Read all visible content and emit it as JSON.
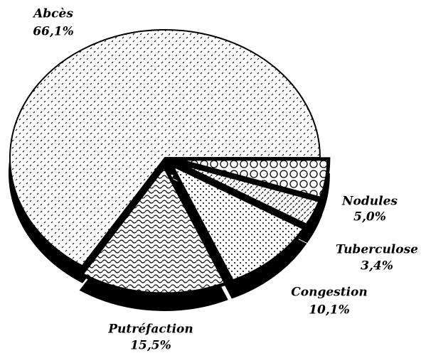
{
  "chart_data": {
    "type": "pie",
    "categories": [
      "Abcès",
      "Putréfaction",
      "Congestion",
      "Tuberculose",
      "Nodules"
    ],
    "values": [
      66.1,
      15.5,
      10.1,
      3.4,
      5.0
    ],
    "value_labels": [
      "66,1%",
      "15,5%",
      "10,1%",
      "3,4%",
      "5,0%"
    ]
  }
}
